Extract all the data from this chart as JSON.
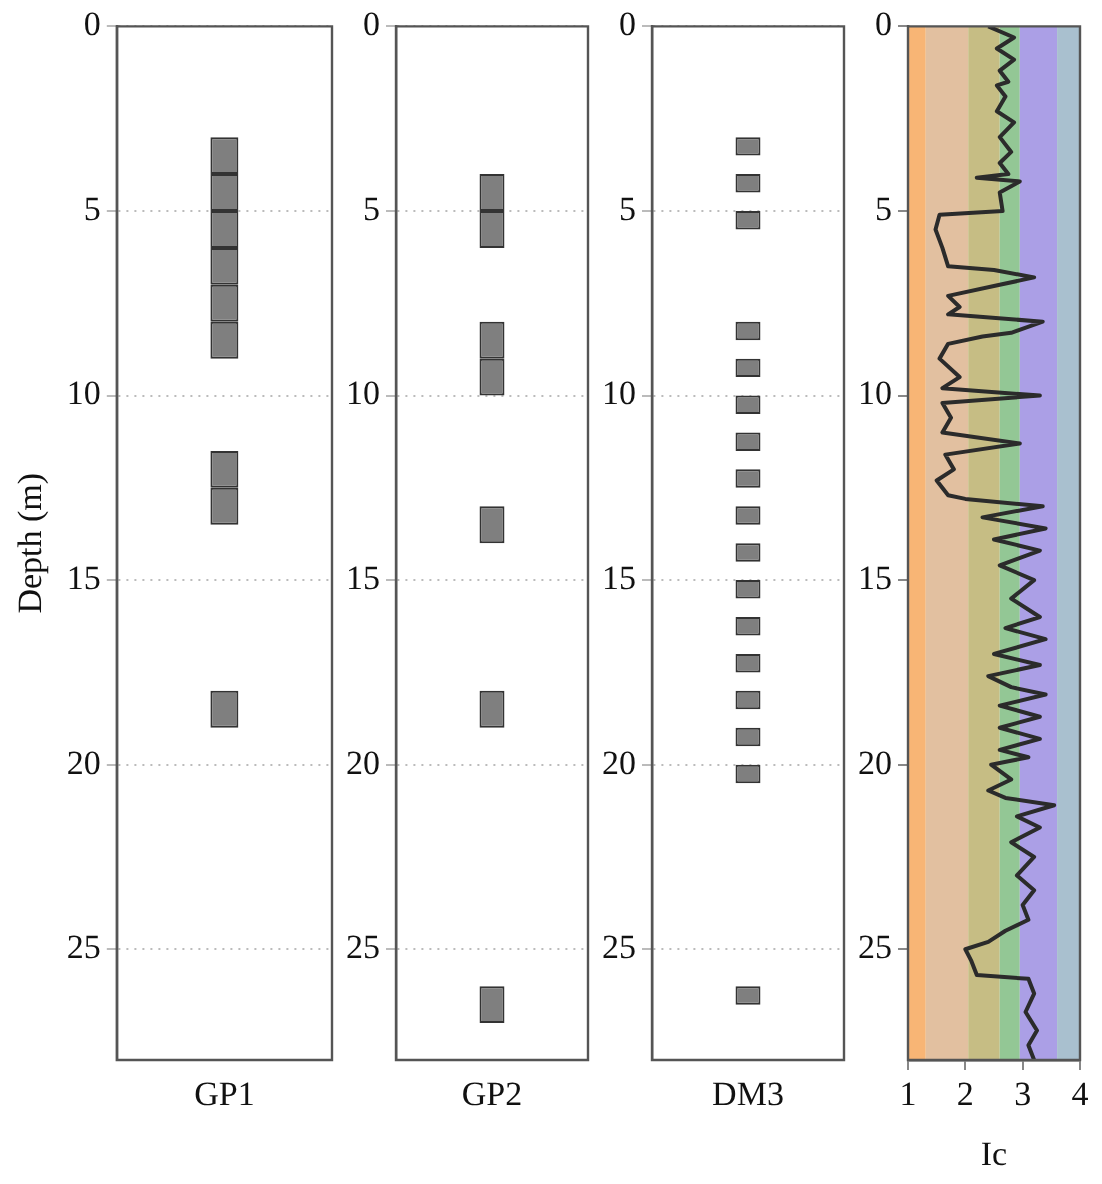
{
  "chart_data": [
    {
      "type": "bar",
      "ylabel": "Depth (m)",
      "categories": [
        "GP1"
      ],
      "ylim": [
        28,
        0
      ],
      "yticks": [
        0,
        5,
        10,
        15,
        20,
        25
      ],
      "grid": "y",
      "series": [
        {
          "color": "#7f7f7f",
          "values": [
            1
          ],
          "base": [
            3
          ]
        },
        {
          "color": "#7f7f7f",
          "values": [
            1
          ],
          "base": [
            4
          ]
        },
        {
          "color": "#7f7f7f",
          "values": [
            1
          ],
          "base": [
            5
          ]
        },
        {
          "color": "#7f7f7f",
          "values": [
            1
          ],
          "base": [
            6
          ]
        },
        {
          "color": "#7f7f7f",
          "values": [
            1
          ],
          "base": [
            7
          ]
        },
        {
          "color": "#7f7f7f",
          "values": [
            1
          ],
          "base": [
            8
          ]
        },
        {
          "color": "#7f7f7f",
          "values": [
            1
          ],
          "base": [
            11.5
          ]
        },
        {
          "color": "#7f7f7f",
          "values": [
            1
          ],
          "base": [
            12.5
          ]
        },
        {
          "color": "#7f7f7f",
          "values": [
            1
          ],
          "base": [
            18
          ]
        }
      ]
    },
    {
      "type": "bar",
      "categories": [
        "GP2"
      ],
      "ylim": [
        28,
        0
      ],
      "yticks": [
        0,
        5,
        10,
        15,
        20,
        25
      ],
      "grid": "y",
      "series": [
        {
          "color": "#7f7f7f",
          "values": [
            1
          ],
          "base": [
            4
          ]
        },
        {
          "color": "#7f7f7f",
          "values": [
            1
          ],
          "base": [
            5
          ]
        },
        {
          "color": "#7f7f7f",
          "values": [
            1
          ],
          "base": [
            8
          ]
        },
        {
          "color": "#7f7f7f",
          "values": [
            1
          ],
          "base": [
            9
          ]
        },
        {
          "color": "#7f7f7f",
          "values": [
            1
          ],
          "base": [
            13
          ]
        },
        {
          "color": "#7f7f7f",
          "values": [
            1
          ],
          "base": [
            18
          ]
        },
        {
          "color": "#7f7f7f",
          "values": [
            1
          ],
          "base": [
            26
          ]
        }
      ]
    },
    {
      "type": "bar",
      "categories": [
        "DM3"
      ],
      "ylim": [
        28,
        0
      ],
      "yticks": [
        0,
        5,
        10,
        15,
        20,
        25
      ],
      "grid": "y",
      "series": [
        {
          "color": "#7f7f7f",
          "values": [
            0.5
          ],
          "base": [
            3
          ]
        },
        {
          "color": "#7f7f7f",
          "values": [
            0.5
          ],
          "base": [
            4
          ]
        },
        {
          "color": "#7f7f7f",
          "values": [
            0.5
          ],
          "base": [
            5
          ]
        },
        {
          "color": "#7f7f7f",
          "values": [
            0.5
          ],
          "base": [
            8
          ]
        },
        {
          "color": "#7f7f7f",
          "values": [
            0.5
          ],
          "base": [
            9
          ]
        },
        {
          "color": "#7f7f7f",
          "values": [
            0.5
          ],
          "base": [
            10
          ]
        },
        {
          "color": "#7f7f7f",
          "values": [
            0.5
          ],
          "base": [
            11
          ]
        },
        {
          "color": "#7f7f7f",
          "values": [
            0.5
          ],
          "base": [
            12
          ]
        },
        {
          "color": "#7f7f7f",
          "values": [
            0.5
          ],
          "base": [
            13
          ]
        },
        {
          "color": "#7f7f7f",
          "values": [
            0.5
          ],
          "base": [
            14
          ]
        },
        {
          "color": "#7f7f7f",
          "values": [
            0.5
          ],
          "base": [
            15
          ]
        },
        {
          "color": "#7f7f7f",
          "values": [
            0.5
          ],
          "base": [
            16
          ]
        },
        {
          "color": "#7f7f7f",
          "values": [
            0.5
          ],
          "base": [
            17
          ]
        },
        {
          "color": "#7f7f7f",
          "values": [
            0.5
          ],
          "base": [
            18
          ]
        },
        {
          "color": "#7f7f7f",
          "values": [
            0.5
          ],
          "base": [
            19
          ]
        },
        {
          "color": "#7f7f7f",
          "values": [
            0.5
          ],
          "base": [
            20
          ]
        },
        {
          "color": "#7f7f7f",
          "values": [
            0.5
          ],
          "base": [
            26
          ]
        }
      ]
    },
    {
      "type": "line",
      "xlabel": "Ic",
      "xlim": [
        1,
        4
      ],
      "xticks": [
        1,
        2,
        3,
        4
      ],
      "ylim": [
        28,
        0
      ],
      "yticks": [
        0,
        5,
        10,
        15,
        20,
        25
      ],
      "bands": [
        {
          "axis": "x",
          "from": 1,
          "to": 1.31,
          "color": "#f8b575"
        },
        {
          "axis": "x",
          "from": 1.31,
          "to": 2.05,
          "color": "#e2c0a0"
        },
        {
          "axis": "x",
          "from": 2.05,
          "to": 2.6,
          "color": "#c6bd84"
        },
        {
          "axis": "x",
          "from": 2.6,
          "to": 2.95,
          "color": "#93c795"
        },
        {
          "axis": "x",
          "from": 2.95,
          "to": 3.6,
          "color": "#ab9fe6"
        },
        {
          "axis": "x",
          "from": 3.6,
          "to": 4,
          "color": "#a9c0cf"
        }
      ],
      "series": [
        {
          "color": "#2b2b2b",
          "x": [
            2.4,
            2.85,
            2.55,
            2.85,
            2.6,
            2.75,
            2.55,
            2.7,
            2.55,
            2.85,
            2.6,
            2.8,
            2.6,
            2.75,
            2.2,
            2.95,
            2.6,
            2.65,
            1.55,
            1.48,
            1.6,
            1.7,
            2.5,
            3.2,
            2.6,
            1.7,
            1.9,
            1.7,
            3.35,
            2.8,
            2.3,
            1.7,
            1.55,
            1.9,
            1.6,
            3.3,
            1.6,
            1.75,
            1.6,
            2.95,
            1.65,
            1.8,
            1.5,
            1.7,
            2.0,
            3.35,
            2.3,
            3.4,
            2.5,
            3.3,
            2.6,
            3.2,
            2.8,
            3.3,
            2.7,
            3.4,
            2.5,
            3.3,
            2.4,
            2.8,
            3.4,
            2.6,
            3.3,
            2.6,
            3.3,
            2.6,
            3.1,
            2.45,
            2.8,
            2.4,
            2.7,
            3.55,
            2.9,
            3.3,
            2.8,
            3.2,
            2.9,
            3.2,
            3.0,
            3.1,
            2.7,
            2.4,
            2.0,
            2.1,
            2.2,
            3.1,
            3.2,
            3.05,
            3.25,
            3.1,
            3.2
          ],
          "values": [
            0,
            0.3,
            0.6,
            0.9,
            1.2,
            1.5,
            1.6,
            1.9,
            2.3,
            2.6,
            3.0,
            3.4,
            3.7,
            4.0,
            4.1,
            4.2,
            4.5,
            5.0,
            5.1,
            5.5,
            6.0,
            6.5,
            6.6,
            6.8,
            7.0,
            7.3,
            7.6,
            7.8,
            8.0,
            8.3,
            8.4,
            8.6,
            9.0,
            9.5,
            9.8,
            10.0,
            10.2,
            10.6,
            11.0,
            11.3,
            11.6,
            12.0,
            12.3,
            12.7,
            12.8,
            13.0,
            13.3,
            13.6,
            13.9,
            14.2,
            14.6,
            15.0,
            15.5,
            16.0,
            16.3,
            16.6,
            17.0,
            17.3,
            17.6,
            17.9,
            18.1,
            18.4,
            18.7,
            19.0,
            19.3,
            19.6,
            19.8,
            20.0,
            20.4,
            20.7,
            20.9,
            21.1,
            21.4,
            21.7,
            22.1,
            22.5,
            23.0,
            23.4,
            23.8,
            24.2,
            24.5,
            24.8,
            25.0,
            25.3,
            25.7,
            25.8,
            26.2,
            26.7,
            27.2,
            27.6,
            28.0
          ]
        }
      ]
    }
  ]
}
